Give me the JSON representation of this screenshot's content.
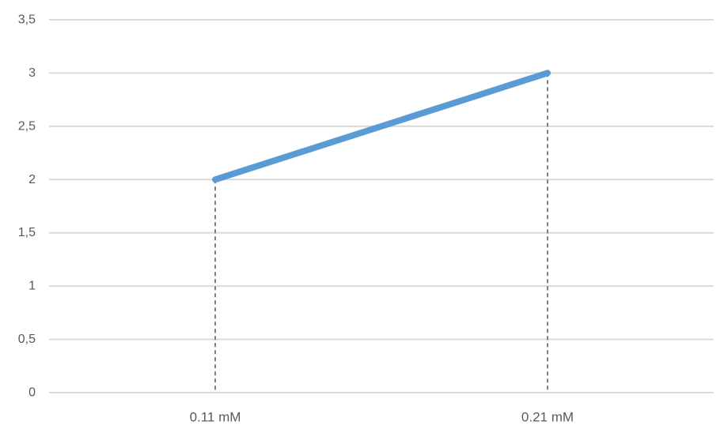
{
  "chart_data": {
    "type": "line",
    "title": "",
    "xlabel": "",
    "ylabel": "",
    "x": [
      0.11,
      0.21
    ],
    "y": [
      2,
      3
    ],
    "x_tick_labels": [
      "0.11 mM",
      "0.21 mM"
    ],
    "y_ticks": [
      {
        "value": 0,
        "label": "0"
      },
      {
        "value": 0.5,
        "label": "0,5"
      },
      {
        "value": 1,
        "label": "1"
      },
      {
        "value": 1.5,
        "label": "1,5"
      },
      {
        "value": 2,
        "label": "2"
      },
      {
        "value": 2.5,
        "label": "2,5"
      },
      {
        "value": 3,
        "label": "3"
      },
      {
        "value": 3.5,
        "label": "3,5"
      }
    ],
    "xlim": [
      0.06,
      0.26
    ],
    "ylim": [
      0,
      3.5
    ],
    "grid": true,
    "legend": "none",
    "droplines": true,
    "colors": {
      "line": "#5B9BD5",
      "gridline": "#D9D9D9",
      "dropline": "#7F7F7F",
      "tick_label": "#595959"
    }
  }
}
